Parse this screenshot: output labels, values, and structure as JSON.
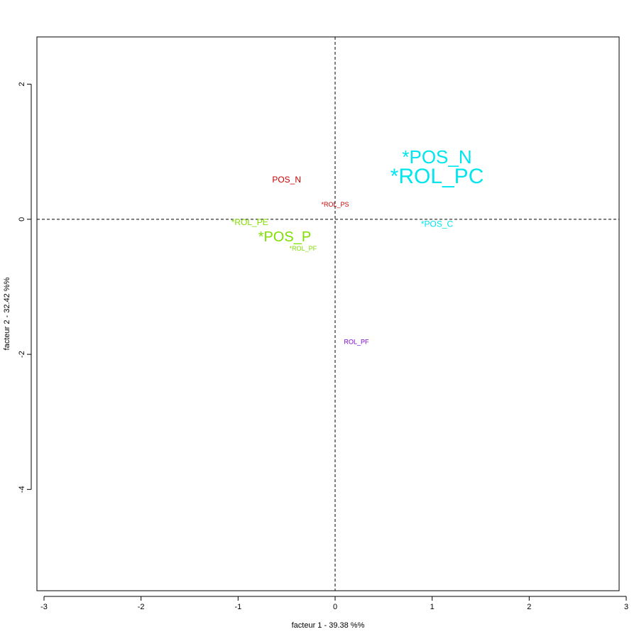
{
  "chart_data": {
    "type": "scatter",
    "xlabel": "facteur  1  - 39.38 %%",
    "ylabel": "facteur  2  - 32.42 %%",
    "xlim": [
      -3.0,
      3.0
    ],
    "ylim": [
      -5.5,
      2.7
    ],
    "x_ticks": [
      -3,
      -2,
      -1,
      0,
      1,
      2,
      3
    ],
    "y_ticks": [
      -4,
      -2,
      0,
      2
    ],
    "reference_lines": {
      "x": 0,
      "y": 0,
      "style": "dashed"
    },
    "grid": false,
    "points": [
      {
        "label": "POS_N",
        "x": -0.5,
        "y": 0.58,
        "color": "#cc0000",
        "size": "small"
      },
      {
        "label": "*ROL_PS",
        "x": 0.0,
        "y": 0.21,
        "color": "#cc0000",
        "size": "tiny"
      },
      {
        "label": "*POS_N",
        "x": 1.05,
        "y": 0.9,
        "color": "#00e5ee",
        "size": "large"
      },
      {
        "label": "*ROL_PC",
        "x": 1.05,
        "y": 0.62,
        "color": "#00e5ee",
        "size": "xlarge"
      },
      {
        "label": "*POS_C",
        "x": 1.05,
        "y": -0.08,
        "color": "#00e5ee",
        "size": "small"
      },
      {
        "label": "*ROL_PE",
        "x": -0.88,
        "y": -0.05,
        "color": "#7fe000",
        "size": "small"
      },
      {
        "label": "*POS_P",
        "x": -0.52,
        "y": -0.27,
        "color": "#7fe000",
        "size": "medium"
      },
      {
        "label": "*ROL_PF",
        "x": -0.33,
        "y": -0.44,
        "color": "#7fe000",
        "size": "tiny"
      },
      {
        "label": "ROL_PF",
        "x": 0.22,
        "y": -1.82,
        "color": "#7a00cc",
        "size": "tiny"
      }
    ]
  }
}
